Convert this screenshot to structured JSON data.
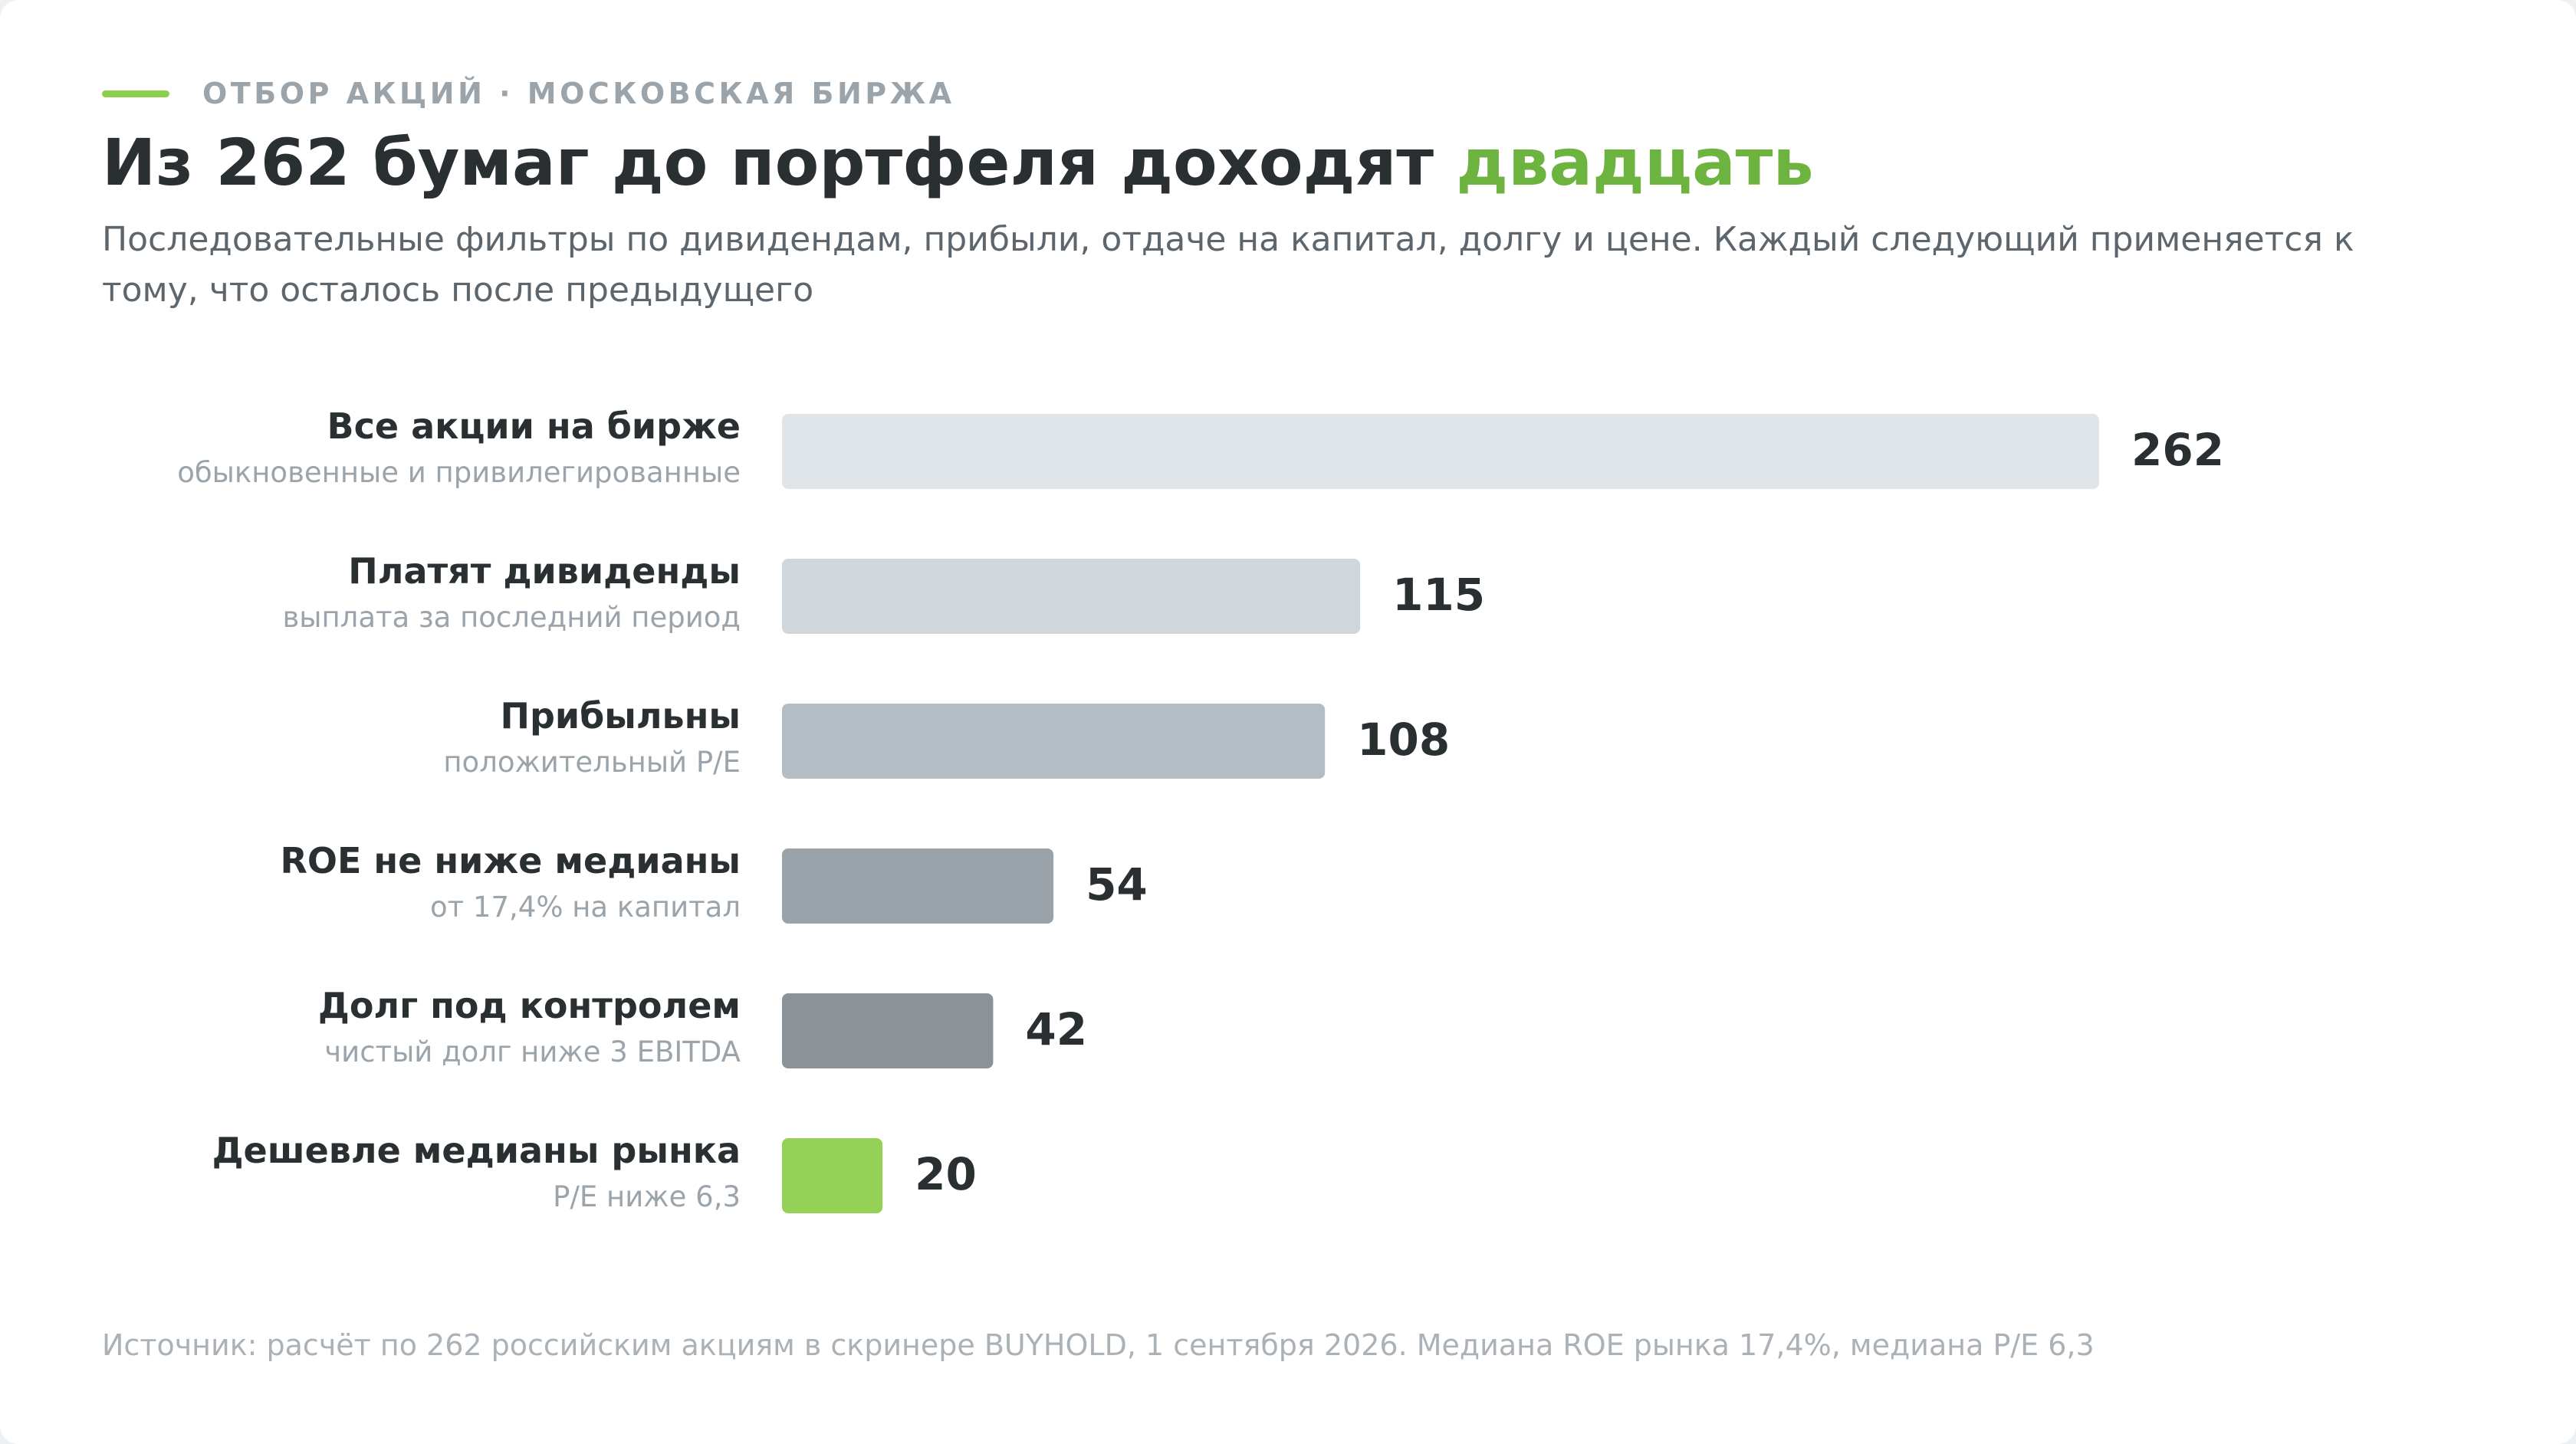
{
  "header": {
    "kicker": "ОТБОР АКЦИЙ · МОСКОВСКАЯ БИРЖА",
    "title_main": "Из 262 бумаг до портфеля доходят ",
    "title_accent": "двадцать",
    "subtitle": "Последовательные фильтры по дивидендам, прибыли, отдаче на капитал, долгу и цене. Каждый следующий применяется к тому, что осталось после предыдущего"
  },
  "colors": {
    "accent": "#6db33f",
    "kicker_line": "#8ccf4f",
    "label": "#2a2f31",
    "sublabel": "#9ba4ab",
    "value": "#2a2f31"
  },
  "chart_data": {
    "type": "bar",
    "orientation": "horizontal",
    "categories": [
      "Все акции на бирже",
      "Платят дивиденды",
      "Прибыльны",
      "ROE не ниже медианы",
      "Долг под контролем",
      "Дешевле медианы рынка"
    ],
    "sublabels": [
      "обыкновенные и привилегированные",
      "выплата за последний период",
      "положительный P/E",
      "от 17,4% на капитал",
      "чистый долг ниже 3 EBITDA",
      "P/E ниже 6,3"
    ],
    "values": [
      262,
      115,
      108,
      54,
      42,
      20
    ],
    "bar_colors": [
      "#dfe5e9",
      "#cfd6dc",
      "#b3bdc3",
      "#9aa3aa",
      "#8b9399",
      "#95d057"
    ],
    "xlim": [
      0,
      262
    ]
  },
  "footer": {
    "source": "Источник: расчёт по 262 российским акциям в скринере BUYHOLD, 1 сентября 2026. Медиана ROE рынка 17,4%, медиана P/E 6,3"
  }
}
